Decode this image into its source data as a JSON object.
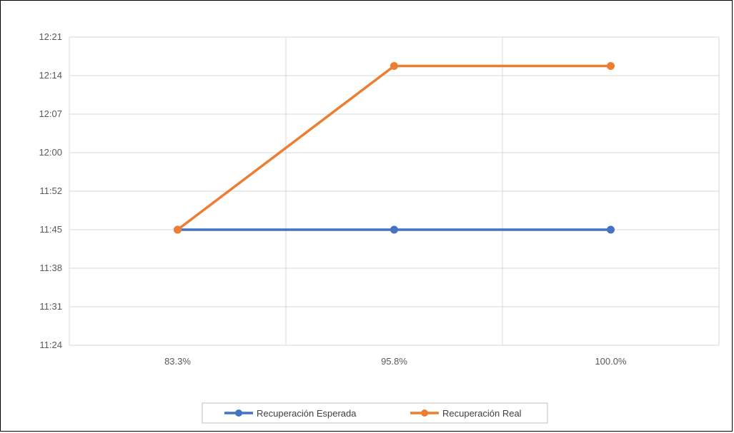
{
  "chart_data": {
    "type": "line",
    "title": "",
    "xlabel": "",
    "ylabel": "",
    "categories": [
      "83.3%",
      "95.8%",
      "100.0%"
    ],
    "y_ticks": [
      "11:24",
      "11:31",
      "11:38",
      "11:45",
      "11:52",
      "12:00",
      "12:07",
      "12:14",
      "12:21"
    ],
    "ylim": [
      0,
      8
    ],
    "series": [
      {
        "name": "Recuperación Esperada",
        "values": [
          3,
          3,
          3
        ],
        "color": "#4472C4"
      },
      {
        "name": "Recuperación Real",
        "values": [
          3,
          7.25,
          7.25
        ],
        "color": "#ED7D31"
      }
    ],
    "grid": true,
    "legend_position": "bottom"
  }
}
